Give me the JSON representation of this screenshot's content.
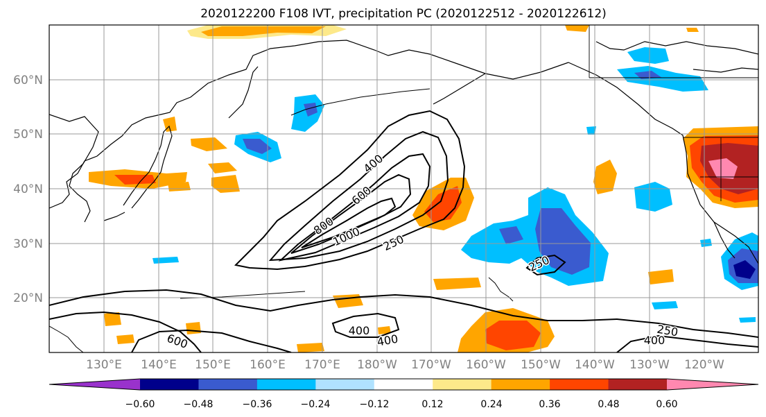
{
  "title": "2020122200 F108 IVT, precipitation PC (2020122512 - 2020122612)",
  "map": {
    "lon_labels": [
      "130°E",
      "140°E",
      "150°E",
      "160°E",
      "170°E",
      "180°W",
      "170°W",
      "160°W",
      "150°W",
      "140°W",
      "130°W",
      "120°W"
    ],
    "lat_labels": [
      "60°N",
      "50°N",
      "40°N",
      "30°N",
      "20°N"
    ],
    "contour_labels": [
      "400",
      "600",
      "800",
      "1000",
      "250",
      "250",
      "400",
      "400",
      "600",
      "250",
      "400"
    ],
    "contour_levels": [
      250,
      400,
      600,
      800,
      1000
    ]
  },
  "colorbar": {
    "tick_labels": [
      "−0.60",
      "−0.48",
      "−0.36",
      "−0.24",
      "−0.12",
      "0.12",
      "0.24",
      "0.36",
      "0.48",
      "0.60"
    ],
    "colors": [
      "#9932cc",
      "#00008b",
      "#3a5bcf",
      "#00bfff",
      "#b0e2ff",
      "#ffffff",
      "#fde98a",
      "#ffa500",
      "#ff4500",
      "#b22222",
      "#ff88b0"
    ]
  }
}
